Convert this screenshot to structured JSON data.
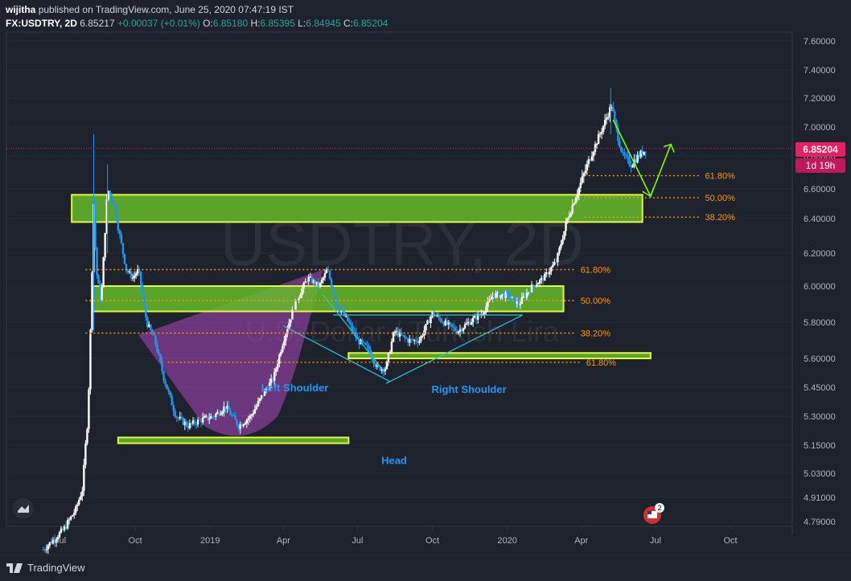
{
  "header": {
    "author": "wijitha",
    "published_text": "published on TradingView.com, June 25, 2020 07:47:19 IST",
    "symbol": "FX:USDTRY, 2D",
    "last": "6.85217",
    "change": "+0.00037 (+0.01%)",
    "o_label": "O:",
    "o": "6.85180",
    "h_label": "H:",
    "h": "6.85395",
    "l_label": "L:",
    "l": "6.84945",
    "c_label": "C:",
    "c": "6.85204"
  },
  "watermark": {
    "symbol": "USDTRY, 2D",
    "name": "U.S. Dollar / Turkish Lira"
  },
  "price_tag": {
    "price": "6.85204",
    "countdown": "1d 19h"
  },
  "footer": {
    "brand": "TradingView"
  },
  "events_badge": "2",
  "colors": {
    "background": "#1e222d",
    "up_candle": "#ffffff",
    "down_candle": "#2196f3",
    "zone_fill": "#66bb2a",
    "zone_border": "#e6f542",
    "fib": "#ff9800",
    "pattern_line": "#26c6da",
    "cup": "#ab47bc",
    "current_price": "#e91e63",
    "projection": "#7cfc00",
    "label_text": "#2196f3"
  },
  "chart_data": {
    "type": "candlestick",
    "y_axis": {
      "ticks": [
        7.6,
        7.4,
        7.2,
        7.0,
        6.8,
        6.6,
        6.4,
        6.2,
        6.0,
        5.8,
        5.6,
        5.45,
        5.3,
        5.15,
        5.03,
        4.91,
        4.79
      ],
      "tick_labels": [
        "7.60000",
        "7.40000",
        "7.20000",
        "7.00000",
        "6.80000",
        "6.60000",
        "6.40000",
        "6.20000",
        "6.00000",
        "5.80000",
        "5.60000",
        "5.45000",
        "5.30000",
        "5.15000",
        "5.03000",
        "4.91000",
        "4.79000"
      ]
    },
    "x_axis": {
      "ticks": [
        "2018-07-01",
        "2018-10-01",
        "2019-01-01",
        "2019-04-01",
        "2019-07-01",
        "2019-10-01",
        "2020-01-01",
        "2020-04-01",
        "2020-07-01",
        "2020-10-01"
      ],
      "tick_labels": [
        "Jul",
        "Oct",
        "2019",
        "Apr",
        "Jul",
        "Oct",
        "2020",
        "Apr",
        "Jul",
        "Oct"
      ]
    },
    "price_path": [
      [
        "2018-06-10",
        4.65
      ],
      [
        "2018-07-05",
        4.75
      ],
      [
        "2018-07-20",
        4.85
      ],
      [
        "2018-07-28",
        4.95
      ],
      [
        "2018-08-04",
        5.3
      ],
      [
        "2018-08-08",
        5.9
      ],
      [
        "2018-08-11",
        6.5
      ],
      [
        "2018-08-14",
        6.1
      ],
      [
        "2018-08-20",
        5.9
      ],
      [
        "2018-08-28",
        6.6
      ],
      [
        "2018-09-05",
        6.5
      ],
      [
        "2018-09-12",
        6.3
      ],
      [
        "2018-09-20",
        6.1
      ],
      [
        "2018-09-28",
        6.05
      ],
      [
        "2018-10-05",
        6.1
      ],
      [
        "2018-10-15",
        5.8
      ],
      [
        "2018-10-25",
        5.7
      ],
      [
        "2018-11-05",
        5.5
      ],
      [
        "2018-11-20",
        5.3
      ],
      [
        "2018-12-05",
        5.25
      ],
      [
        "2018-12-20",
        5.28
      ],
      [
        "2019-01-05",
        5.3
      ],
      [
        "2019-01-20",
        5.35
      ],
      [
        "2019-02-05",
        5.25
      ],
      [
        "2019-02-20",
        5.3
      ],
      [
        "2019-03-05",
        5.4
      ],
      [
        "2019-03-20",
        5.5
      ],
      [
        "2019-04-01",
        5.7
      ],
      [
        "2019-04-15",
        5.9
      ],
      [
        "2019-05-01",
        6.05
      ],
      [
        "2019-05-15",
        6.0
      ],
      [
        "2019-05-25",
        6.1
      ],
      [
        "2019-06-05",
        5.9
      ],
      [
        "2019-06-20",
        5.8
      ],
      [
        "2019-07-01",
        5.7
      ],
      [
        "2019-07-15",
        5.65
      ],
      [
        "2019-07-25",
        5.55
      ],
      [
        "2019-08-05",
        5.55
      ],
      [
        "2019-08-15",
        5.75
      ],
      [
        "2019-09-01",
        5.7
      ],
      [
        "2019-09-15",
        5.7
      ],
      [
        "2019-10-01",
        5.85
      ],
      [
        "2019-10-15",
        5.8
      ],
      [
        "2019-11-01",
        5.75
      ],
      [
        "2019-11-15",
        5.8
      ],
      [
        "2019-12-01",
        5.85
      ],
      [
        "2019-12-15",
        5.95
      ],
      [
        "2020-01-01",
        5.95
      ],
      [
        "2020-01-15",
        5.9
      ],
      [
        "2020-02-01",
        6.0
      ],
      [
        "2020-02-15",
        6.05
      ],
      [
        "2020-03-01",
        6.15
      ],
      [
        "2020-03-15",
        6.4
      ],
      [
        "2020-03-25",
        6.55
      ],
      [
        "2020-04-05",
        6.7
      ],
      [
        "2020-04-20",
        6.9
      ],
      [
        "2020-05-01",
        7.05
      ],
      [
        "2020-05-08",
        7.15
      ],
      [
        "2020-05-15",
        6.95
      ],
      [
        "2020-05-22",
        6.8
      ],
      [
        "2020-06-01",
        6.75
      ],
      [
        "2020-06-10",
        6.8
      ],
      [
        "2020-06-20",
        6.85
      ]
    ],
    "zones": [
      {
        "name": "upper-resistance-zone",
        "x1": "2018-07-15",
        "x2": "2020-06-15",
        "y1": 6.38,
        "y2": 6.56
      },
      {
        "name": "middle-zone",
        "x1": "2018-08-10",
        "x2": "2020-03-10",
        "y1": 5.86,
        "y2": 6.0
      },
      {
        "name": "neckline-zone",
        "x1": "2019-06-20",
        "x2": "2020-06-25",
        "y1": 5.6,
        "y2": 5.63
      },
      {
        "name": "cup-bottom-zone",
        "x1": "2018-09-10",
        "x2": "2019-06-20",
        "y1": 5.16,
        "y2": 5.19
      }
    ],
    "fib_sets": [
      {
        "x1": "2020-04-05",
        "x2": "2020-08-25",
        "levels": [
          {
            "y": 6.68,
            "label": "61.80%"
          },
          {
            "y": 6.54,
            "label": "50.00%"
          },
          {
            "y": 6.41,
            "label": "38.20%"
          }
        ]
      },
      {
        "x1": "2018-08-01",
        "x2": "2020-03-25",
        "levels": [
          {
            "y": 6.1,
            "label": "61.80%"
          },
          {
            "y": 5.92,
            "label": "50.00%"
          },
          {
            "y": 5.74,
            "label": "38.20%"
          }
        ]
      },
      {
        "x1": "2018-11-10",
        "x2": "2020-04-01",
        "levels": [
          {
            "y": 5.58,
            "label": "61.80%"
          }
        ]
      }
    ],
    "annotations": [
      {
        "text": "Left Shoulder",
        "x": "2019-04-15",
        "y": 5.43
      },
      {
        "text": "Right Shoulder",
        "x": "2019-11-15",
        "y": 5.42
      },
      {
        "text": "Head",
        "x": "2019-08-15",
        "y": 5.07
      }
    ],
    "current_price": 6.85204,
    "projection_arrow": [
      [
        "2020-05-10",
        7.05
      ],
      [
        "2020-06-25",
        6.55
      ],
      [
        "2020-07-20",
        6.88
      ]
    ]
  }
}
